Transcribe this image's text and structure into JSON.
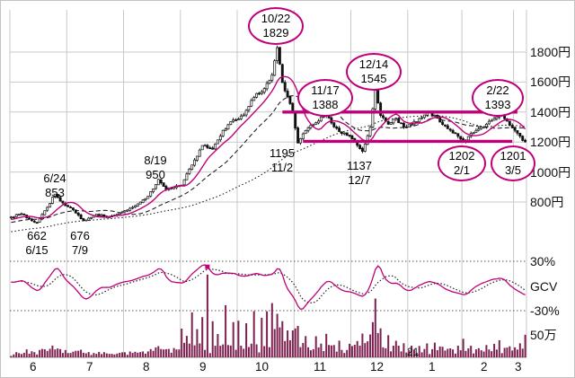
{
  "colors": {
    "accent": "#c0007a",
    "volume_bar": "#7d2150",
    "grid": "#c9c9c9",
    "candle_up": "#ffffff",
    "candle_down": "#111111",
    "ink": "#111111"
  },
  "y_axis": {
    "price_labels": [
      "1800円",
      "1600円",
      "1400円",
      "1200円",
      "1000円",
      "800円"
    ],
    "osc_labels": [
      "30%",
      "GCV",
      "-30%"
    ],
    "volume_label": "50万"
  },
  "x_axis": {
    "months": [
      "6",
      "7",
      "8",
      "9",
      "10",
      "11",
      "12",
      "1",
      "2",
      "3"
    ],
    "year_marker": "21"
  },
  "chart_data": {
    "type": "candlestick",
    "currency": "円",
    "ylim": [
      500,
      2080
    ],
    "price_gridlines": [
      800,
      1000,
      1200,
      1400,
      1600,
      1800
    ],
    "month_start_indices": [
      0,
      22,
      44,
      66,
      88,
      110,
      132,
      154,
      175,
      195
    ],
    "oscillator": {
      "name": "GCV",
      "ref_lines": [
        30,
        -30
      ],
      "marker_index": 76
    },
    "volume_ref": {
      "value": 50,
      "unit": "万"
    },
    "key_points": [
      {
        "date": "6/15",
        "price": 662
      },
      {
        "date": "6/24",
        "price": 853
      },
      {
        "date": "7/9",
        "price": 676
      },
      {
        "date": "8/19",
        "price": 950
      },
      {
        "date": "10/22",
        "price": 1829
      },
      {
        "date": "11/2",
        "price": 1195
      },
      {
        "date": "11/17",
        "price": 1388
      },
      {
        "date": "12/7",
        "price": 1137
      },
      {
        "date": "12/14",
        "price": 1545
      },
      {
        "date": "2/1",
        "price": 1202
      },
      {
        "date": "2/22",
        "price": 1393
      },
      {
        "date": "3/5",
        "price": 1201
      }
    ],
    "support_resistance": [
      {
        "level": 1400,
        "from_index": 105,
        "to_index": 196
      },
      {
        "level": 1205,
        "from_index": 113,
        "to_index": 194
      }
    ],
    "anchors": [
      [
        0,
        700
      ],
      [
        4,
        722
      ],
      [
        7,
        688
      ],
      [
        10,
        662
      ],
      [
        13,
        742
      ],
      [
        17,
        853
      ],
      [
        20,
        792
      ],
      [
        24,
        748
      ],
      [
        28,
        676
      ],
      [
        33,
        718
      ],
      [
        38,
        700
      ],
      [
        42,
        728
      ],
      [
        46,
        758
      ],
      [
        50,
        798
      ],
      [
        53,
        838
      ],
      [
        57,
        950
      ],
      [
        60,
        882
      ],
      [
        63,
        898
      ],
      [
        66,
        912
      ],
      [
        70,
        1048
      ],
      [
        74,
        1178
      ],
      [
        78,
        1152
      ],
      [
        82,
        1278
      ],
      [
        86,
        1348
      ],
      [
        90,
        1380
      ],
      [
        94,
        1498
      ],
      [
        98,
        1558
      ],
      [
        101,
        1648
      ],
      [
        103,
        1829
      ],
      [
        105,
        1598
      ],
      [
        107,
        1500
      ],
      [
        109,
        1398
      ],
      [
        111,
        1195
      ],
      [
        114,
        1278
      ],
      [
        118,
        1328
      ],
      [
        122,
        1388
      ],
      [
        125,
        1302
      ],
      [
        128,
        1258
      ],
      [
        131,
        1242
      ],
      [
        134,
        1178
      ],
      [
        136,
        1137
      ],
      [
        139,
        1298
      ],
      [
        141,
        1545
      ],
      [
        143,
        1378
      ],
      [
        146,
        1318
      ],
      [
        149,
        1358
      ],
      [
        152,
        1298
      ],
      [
        155,
        1318
      ],
      [
        158,
        1358
      ],
      [
        161,
        1398
      ],
      [
        164,
        1378
      ],
      [
        167,
        1318
      ],
      [
        170,
        1278
      ],
      [
        173,
        1238
      ],
      [
        175,
        1202
      ],
      [
        178,
        1258
      ],
      [
        181,
        1288
      ],
      [
        184,
        1318
      ],
      [
        187,
        1358
      ],
      [
        189,
        1393
      ],
      [
        192,
        1338
      ],
      [
        195,
        1278
      ],
      [
        197,
        1238
      ],
      [
        199,
        1201
      ]
    ],
    "volume_spikes": {
      "66": 60,
      "68": 45,
      "70": 90,
      "72": 55,
      "74": 80,
      "76": 190,
      "78": 70,
      "80": 60,
      "83": 110,
      "86": 75,
      "88": 85,
      "91": 70,
      "94": 120,
      "97": 80,
      "99": 90,
      "101": 130,
      "103": 100,
      "105": 85,
      "107": 70,
      "109": 60,
      "111": 75,
      "114": 55,
      "118": 45,
      "122": 60,
      "127": 35,
      "131": 30,
      "134": 40,
      "136": 50,
      "139": 60,
      "141": 120,
      "143": 70,
      "146": 45,
      "149": 35,
      "152": 28,
      "155": 30,
      "158": 25,
      "161": 35,
      "164": 30,
      "167": 25,
      "170": 20,
      "173": 25,
      "175": 40,
      "178": 25,
      "181": 20,
      "184": 25,
      "187": 30,
      "189": 40,
      "192": 25,
      "195": 20,
      "197": 30,
      "199": 55
    },
    "annotations_circled": [
      {
        "line1": "10/22",
        "line2": "1829"
      },
      {
        "line1": "11/17",
        "line2": "1388"
      },
      {
        "line1": "12/14",
        "line2": "1545"
      },
      {
        "line1": "2/22",
        "line2": "1393"
      },
      {
        "line1": "1202",
        "line2": "2/1"
      },
      {
        "line1": "1201",
        "line2": "3/5"
      }
    ],
    "annotations_plain": [
      {
        "line1": "6/24",
        "line2": "853"
      },
      {
        "line1": "662",
        "line2": "6/15"
      },
      {
        "line1": "676",
        "line2": "7/9"
      },
      {
        "line1": "8/19",
        "line2": "950"
      },
      {
        "line1": "1195",
        "line2": "11/2"
      },
      {
        "line1": "1137",
        "line2": "12/7"
      }
    ]
  }
}
